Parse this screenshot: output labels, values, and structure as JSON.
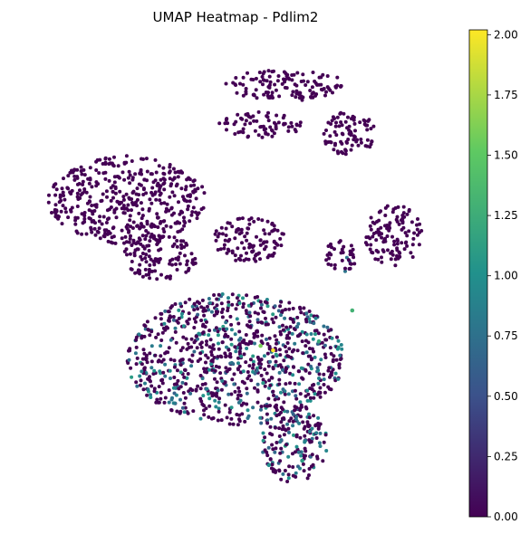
{
  "chart_data": {
    "type": "scatter",
    "title": "UMAP Heatmap - Pdlim2",
    "xlabel": "",
    "ylabel": "",
    "axes_visible": false,
    "grid": false,
    "colormap": "viridis",
    "colormap_stops": [
      "#440154",
      "#3b528b",
      "#21918c",
      "#5ec962",
      "#fde725"
    ],
    "background_point_color": "#440154",
    "colorbar": {
      "position": "right",
      "range": [
        0,
        2.02
      ],
      "ticks": [
        0.0,
        0.25,
        0.5,
        0.75,
        1.0,
        1.25,
        1.5,
        1.75,
        2.0
      ],
      "tick_labels": [
        "0.00",
        "0.25",
        "0.50",
        "0.75",
        "1.00",
        "1.25",
        "1.50",
        "1.75",
        "2.00"
      ]
    },
    "clusters": [
      {
        "cx": 0.62,
        "cy": 0.93,
        "rx": 0.15,
        "ry": 0.035,
        "value": 0
      },
      {
        "cx": 0.56,
        "cy": 0.84,
        "rx": 0.1,
        "ry": 0.03,
        "value": 0
      },
      {
        "cx": 0.77,
        "cy": 0.82,
        "rx": 0.07,
        "ry": 0.05,
        "value": 0
      },
      {
        "cx": 0.24,
        "cy": 0.67,
        "rx": 0.19,
        "ry": 0.1,
        "value": 0
      },
      {
        "cx": 0.53,
        "cy": 0.58,
        "rx": 0.09,
        "ry": 0.05,
        "value": 0
      },
      {
        "cx": 0.32,
        "cy": 0.54,
        "rx": 0.09,
        "ry": 0.05,
        "value": 0
      },
      {
        "cx": 0.88,
        "cy": 0.59,
        "rx": 0.07,
        "ry": 0.07,
        "value": 0
      },
      {
        "cx": 0.75,
        "cy": 0.54,
        "rx": 0.04,
        "ry": 0.04,
        "value": 0.1
      },
      {
        "cx": 0.5,
        "cy": 0.31,
        "rx": 0.26,
        "ry": 0.15,
        "value": 0.3
      },
      {
        "cx": 0.64,
        "cy": 0.12,
        "rx": 0.08,
        "ry": 0.09,
        "value": 0.3
      }
    ],
    "highlight_points": [
      {
        "x": 0.59,
        "y": 0.33,
        "value": 2.0
      },
      {
        "x": 0.56,
        "y": 0.34,
        "value": 1.6
      },
      {
        "x": 0.78,
        "y": 0.42,
        "value": 1.3
      },
      {
        "x": 0.66,
        "y": 0.08,
        "value": 1.1
      },
      {
        "x": 0.58,
        "y": 0.07,
        "value": 1.0
      },
      {
        "x": 0.7,
        "y": 0.35,
        "value": 1.2
      }
    ]
  }
}
